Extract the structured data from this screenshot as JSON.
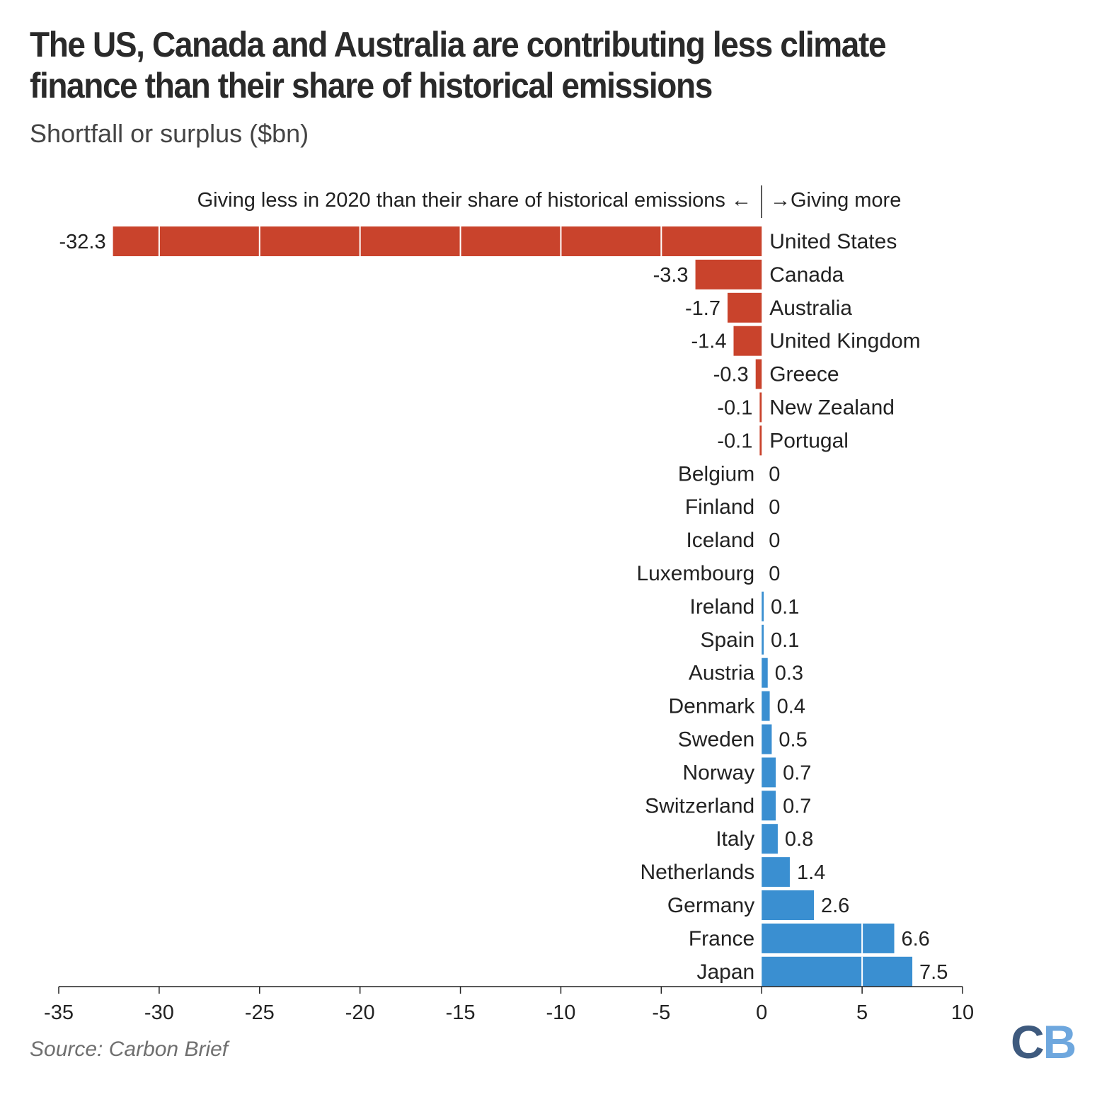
{
  "title": "The US, Canada and Australia are contributing less climate finance than their share of historical emissions",
  "subtitle": "Shortfall or surplus ($bn)",
  "annotation_left": "Giving less in 2020 than their share of historical emissions ←",
  "annotation_right": "→Giving more",
  "source": "Source: Carbon Brief",
  "logo": {
    "c": "C",
    "b": "B"
  },
  "colors": {
    "negative": "#c9432c",
    "positive": "#3a8fd1",
    "axis": "#222222"
  },
  "chart_data": {
    "type": "bar",
    "orientation": "horizontal",
    "categories": [
      "United States",
      "Canada",
      "Australia",
      "United Kingdom",
      "Greece",
      "New Zealand",
      "Portugal",
      "Belgium",
      "Finland",
      "Iceland",
      "Luxembourg",
      "Ireland",
      "Spain",
      "Austria",
      "Denmark",
      "Sweden",
      "Norway",
      "Switzerland",
      "Italy",
      "Netherlands",
      "Germany",
      "France",
      "Japan"
    ],
    "values": [
      -32.3,
      -3.3,
      -1.7,
      -1.4,
      -0.3,
      -0.1,
      -0.1,
      0,
      0,
      0,
      0,
      0.1,
      0.1,
      0.3,
      0.4,
      0.5,
      0.7,
      0.7,
      0.8,
      1.4,
      2.6,
      6.6,
      7.5
    ],
    "value_labels": [
      "-32.3",
      "-3.3",
      "-1.7",
      "-1.4",
      "-0.3",
      "-0.1",
      "-0.1",
      "0",
      "0",
      "0",
      "0",
      "0.1",
      "0.1",
      "0.3",
      "0.4",
      "0.5",
      "0.7",
      "0.7",
      "0.8",
      "1.4",
      "2.6",
      "6.6",
      "7.5"
    ],
    "xlim": [
      -35,
      10
    ],
    "xticks": [
      -35,
      -30,
      -25,
      -20,
      -15,
      -10,
      -5,
      0,
      5,
      10
    ],
    "xlabel": "",
    "ylabel": "",
    "grid": false
  }
}
